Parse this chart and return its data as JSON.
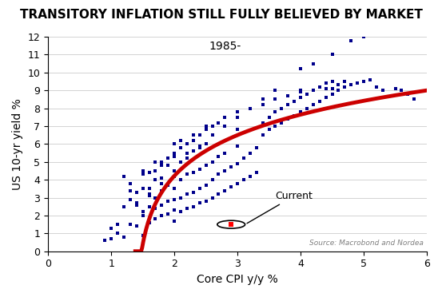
{
  "title": "TRANSITORY INFLATION STILL FULLY BELIEVED BY MARKET",
  "xlabel": "Core CPI y/y %",
  "ylabel": "US 10-yr yield %",
  "annotation_label": "1985-",
  "current_label": "Current",
  "source_text": "Source: Macrobond and Nordea",
  "xlim": [
    0,
    6
  ],
  "ylim": [
    0,
    12
  ],
  "xticks": [
    0,
    1,
    2,
    3,
    4,
    5,
    6
  ],
  "yticks": [
    0,
    1,
    2,
    3,
    4,
    5,
    6,
    7,
    8,
    9,
    10,
    11,
    12
  ],
  "scatter_color": "#00008B",
  "curve_color": "#CC0000",
  "current_point": [
    2.9,
    1.5
  ],
  "curve_a": 5.5,
  "curve_b": 0.85,
  "curve_c": -0.5,
  "scatter_x": [
    0.9,
    1.0,
    1.0,
    1.1,
    1.1,
    1.2,
    1.2,
    1.3,
    1.3,
    1.3,
    1.4,
    1.4,
    1.4,
    1.5,
    1.5,
    1.5,
    1.5,
    1.5,
    1.6,
    1.6,
    1.6,
    1.6,
    1.7,
    1.7,
    1.7,
    1.7,
    1.7,
    1.8,
    1.8,
    1.8,
    1.8,
    1.8,
    1.9,
    1.9,
    1.9,
    1.9,
    2.0,
    2.0,
    2.0,
    2.0,
    2.0,
    2.0,
    2.0,
    2.1,
    2.1,
    2.1,
    2.1,
    2.1,
    2.2,
    2.2,
    2.2,
    2.2,
    2.3,
    2.3,
    2.3,
    2.3,
    2.3,
    2.4,
    2.4,
    2.4,
    2.4,
    2.5,
    2.5,
    2.5,
    2.5,
    2.5,
    2.6,
    2.6,
    2.6,
    2.7,
    2.7,
    2.7,
    2.8,
    2.8,
    2.8,
    2.9,
    2.9,
    3.0,
    3.0,
    3.0,
    3.0,
    3.1,
    3.1,
    3.2,
    3.2,
    3.3,
    3.3,
    3.4,
    3.4,
    3.5,
    3.5,
    3.6,
    3.6,
    3.7,
    3.7,
    3.8,
    3.8,
    3.9,
    3.9,
    4.0,
    4.0,
    4.0,
    4.1,
    4.1,
    4.2,
    4.2,
    4.3,
    4.3,
    4.4,
    4.4,
    4.5,
    4.5,
    4.5,
    4.6,
    4.6,
    4.7,
    4.7,
    4.8,
    4.9,
    5.0,
    5.1,
    5.2,
    5.3,
    5.5,
    5.6,
    5.7,
    5.8,
    1.2,
    1.3,
    1.5,
    1.6,
    1.7,
    1.8,
    1.9,
    2.0,
    2.1,
    2.2,
    2.3,
    2.4,
    2.5,
    2.6,
    2.7,
    2.8,
    3.0,
    3.2,
    3.4,
    3.6,
    3.8,
    4.0,
    4.2,
    4.4,
    1.4,
    1.6,
    1.8,
    2.0,
    2.2,
    2.4,
    2.6,
    2.8,
    3.0,
    3.2,
    3.4,
    3.6,
    4.0,
    4.2,
    4.5,
    4.8,
    5.0
  ],
  "scatter_y": [
    0.6,
    0.7,
    1.3,
    1.0,
    1.5,
    0.8,
    2.5,
    1.5,
    2.9,
    3.4,
    1.4,
    2.7,
    3.3,
    0.9,
    2.0,
    2.2,
    3.5,
    4.3,
    1.6,
    2.5,
    3.2,
    4.4,
    1.8,
    2.4,
    3.0,
    4.0,
    4.5,
    2.0,
    2.6,
    3.4,
    4.1,
    5.0,
    2.1,
    2.8,
    3.7,
    4.8,
    1.7,
    2.3,
    2.9,
    3.5,
    4.2,
    5.3,
    6.0,
    2.2,
    3.0,
    4.0,
    5.0,
    6.2,
    2.4,
    3.2,
    4.3,
    5.5,
    2.5,
    3.3,
    4.4,
    5.6,
    6.5,
    2.7,
    3.5,
    4.6,
    5.8,
    2.8,
    3.7,
    4.8,
    6.0,
    7.0,
    3.0,
    4.0,
    5.0,
    3.2,
    4.3,
    5.3,
    3.4,
    4.5,
    5.5,
    3.6,
    4.7,
    3.8,
    4.9,
    5.9,
    6.8,
    4.0,
    5.2,
    4.2,
    5.5,
    4.4,
    5.8,
    6.5,
    7.2,
    6.8,
    7.5,
    7.0,
    7.8,
    7.2,
    8.0,
    7.4,
    8.2,
    7.6,
    8.4,
    7.8,
    8.6,
    9.0,
    8.0,
    8.8,
    8.2,
    9.0,
    8.4,
    9.2,
    8.6,
    9.4,
    8.8,
    9.1,
    9.5,
    9.0,
    9.3,
    9.2,
    9.5,
    9.3,
    9.4,
    9.5,
    9.6,
    9.2,
    9.0,
    9.1,
    9.0,
    8.8,
    8.5,
    4.2,
    3.8,
    4.5,
    3.5,
    5.0,
    4.8,
    5.2,
    5.5,
    5.8,
    6.0,
    6.2,
    6.5,
    6.8,
    7.0,
    7.2,
    7.5,
    7.8,
    8.0,
    8.2,
    8.5,
    8.7,
    8.9,
    9.0,
    9.1,
    2.6,
    3.1,
    3.8,
    4.5,
    5.2,
    5.9,
    6.5,
    7.0,
    7.5,
    8.0,
    8.5,
    9.0,
    10.2,
    10.5,
    11.0,
    11.8,
    12.0
  ]
}
